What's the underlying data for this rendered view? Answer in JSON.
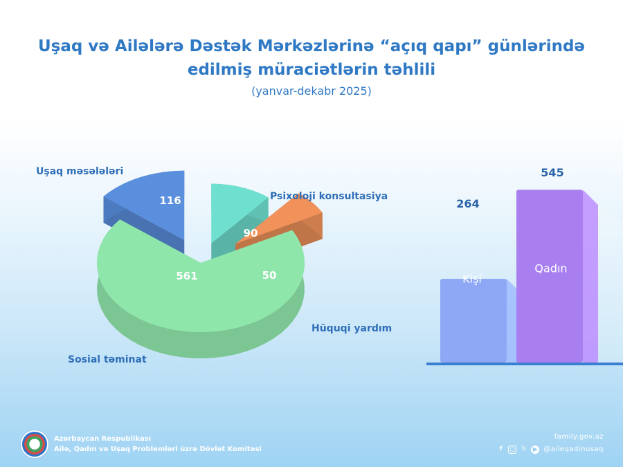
{
  "header": {
    "title_line1": "Uşaq və Ailələrə Dəstək Mərkəzlərinə “açıq qapı” günlərində",
    "title_line2": "edilmiş müraciətlərin təhlili",
    "subtitle": "(yanvar-dekabr 2025)"
  },
  "chart_data": [
    {
      "type": "pie",
      "categories": [
        "Uşaq məsələləri",
        "Psixoloji konsultasiya",
        "Hüquqi yardım",
        "Sosial təminat"
      ],
      "values": [
        116,
        90,
        50,
        561
      ],
      "colors": [
        "#5a8fde",
        "#6fe0cf",
        "#f0925a",
        "#8fe6ab"
      ],
      "style": "3d-exploded"
    },
    {
      "type": "bar",
      "categories": [
        "Kişi",
        "Qadın"
      ],
      "values": [
        264,
        545
      ],
      "colors": [
        "#8fa8f5",
        "#a97ff0"
      ],
      "style": "3d"
    }
  ],
  "footer": {
    "org_line1": "Azərbaycan Respublikası",
    "org_line2": "Ailə, Qadın və Uşaq Problemləri üzrə Dövlət Komitəsi",
    "website": "family.gov.az",
    "social_handle": "@aileqadinusaq",
    "social_icons": [
      "facebook-icon",
      "instagram-icon",
      "x-icon",
      "youtube-icon"
    ]
  }
}
